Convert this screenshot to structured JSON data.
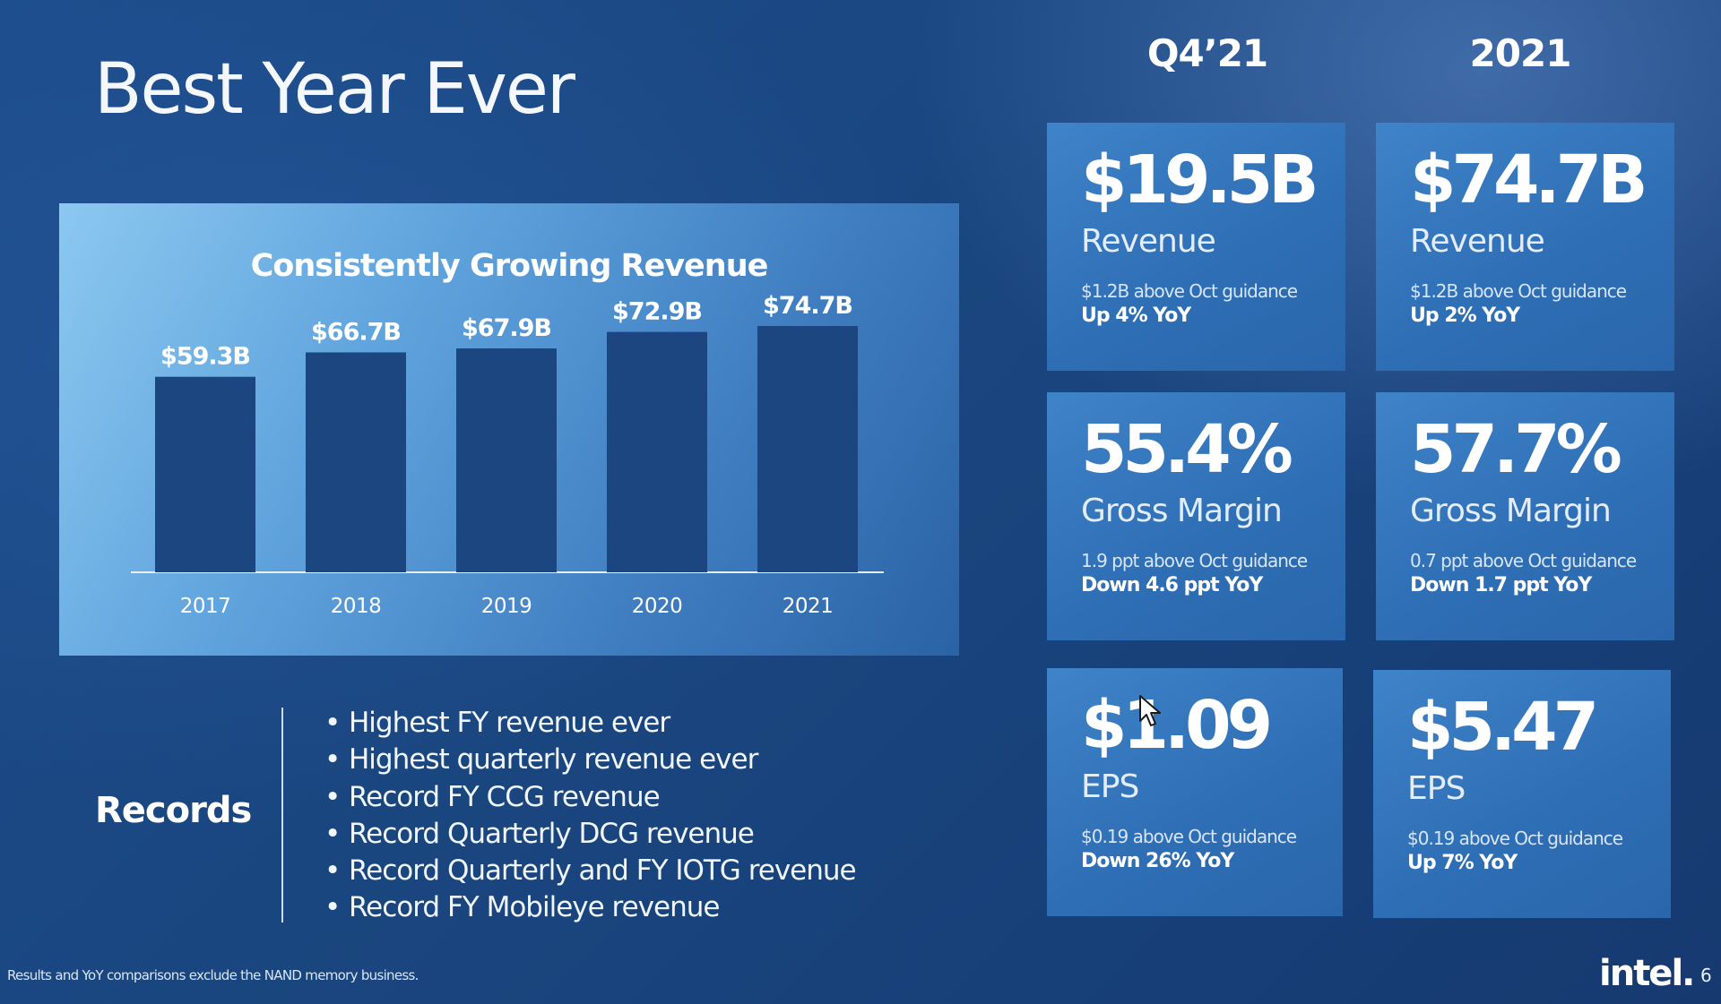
{
  "slide": {
    "title": "Best Year Ever",
    "page_number": "6",
    "footnote": "Results and YoY comparisons exclude the NAND memory business.",
    "logo_text": "intel."
  },
  "chart": {
    "title": "Consistently Growing Revenue"
  },
  "chart_data": {
    "type": "bar",
    "title": "Consistently Growing Revenue",
    "categories": [
      "2017",
      "2018",
      "2019",
      "2020",
      "2021"
    ],
    "values": [
      59.3,
      66.7,
      67.9,
      72.9,
      74.7
    ],
    "data_labels": [
      "$59.3B",
      "$66.7B",
      "$67.9B",
      "$72.9B",
      "$74.7B"
    ],
    "xlabel": "",
    "ylabel": "",
    "ylim": [
      0,
      74.7
    ],
    "grid": false,
    "bar_color": "#1c4680",
    "axis_color": "#e6f1fb"
  },
  "columns": {
    "q4": "Q4’21",
    "fy": "2021"
  },
  "cards": {
    "q4_revenue": {
      "value": "$19.5B",
      "metric": "Revenue",
      "note": "$1.2B above Oct guidance",
      "yoy": "Up 4% YoY"
    },
    "fy_revenue": {
      "value": "$74.7B",
      "metric": "Revenue",
      "note": "$1.2B above Oct guidance",
      "yoy": "Up 2% YoY"
    },
    "q4_margin": {
      "value": "55.4%",
      "metric": "Gross Margin",
      "note": "1.9 ppt above Oct guidance",
      "yoy": "Down 4.6 ppt YoY"
    },
    "fy_margin": {
      "value": "57.7%",
      "metric": "Gross Margin",
      "note": "0.7 ppt above Oct guidance",
      "yoy": "Down 1.7 ppt YoY"
    },
    "q4_eps": {
      "value": "$1.09",
      "metric": "EPS",
      "note": "$0.19 above Oct guidance",
      "yoy": "Down 26% YoY"
    },
    "fy_eps": {
      "value": "$5.47",
      "metric": "EPS",
      "note": "$0.19 above Oct guidance",
      "yoy": "Up 7% YoY"
    }
  },
  "records": {
    "label": "Records",
    "bullet": "•",
    "items": [
      "Highest FY revenue ever",
      "Highest quarterly revenue ever",
      "Record FY CCG revenue",
      "Record Quarterly DCG revenue",
      "Record Quarterly and FY IOTG revenue",
      "Record FY Mobileye revenue"
    ]
  }
}
